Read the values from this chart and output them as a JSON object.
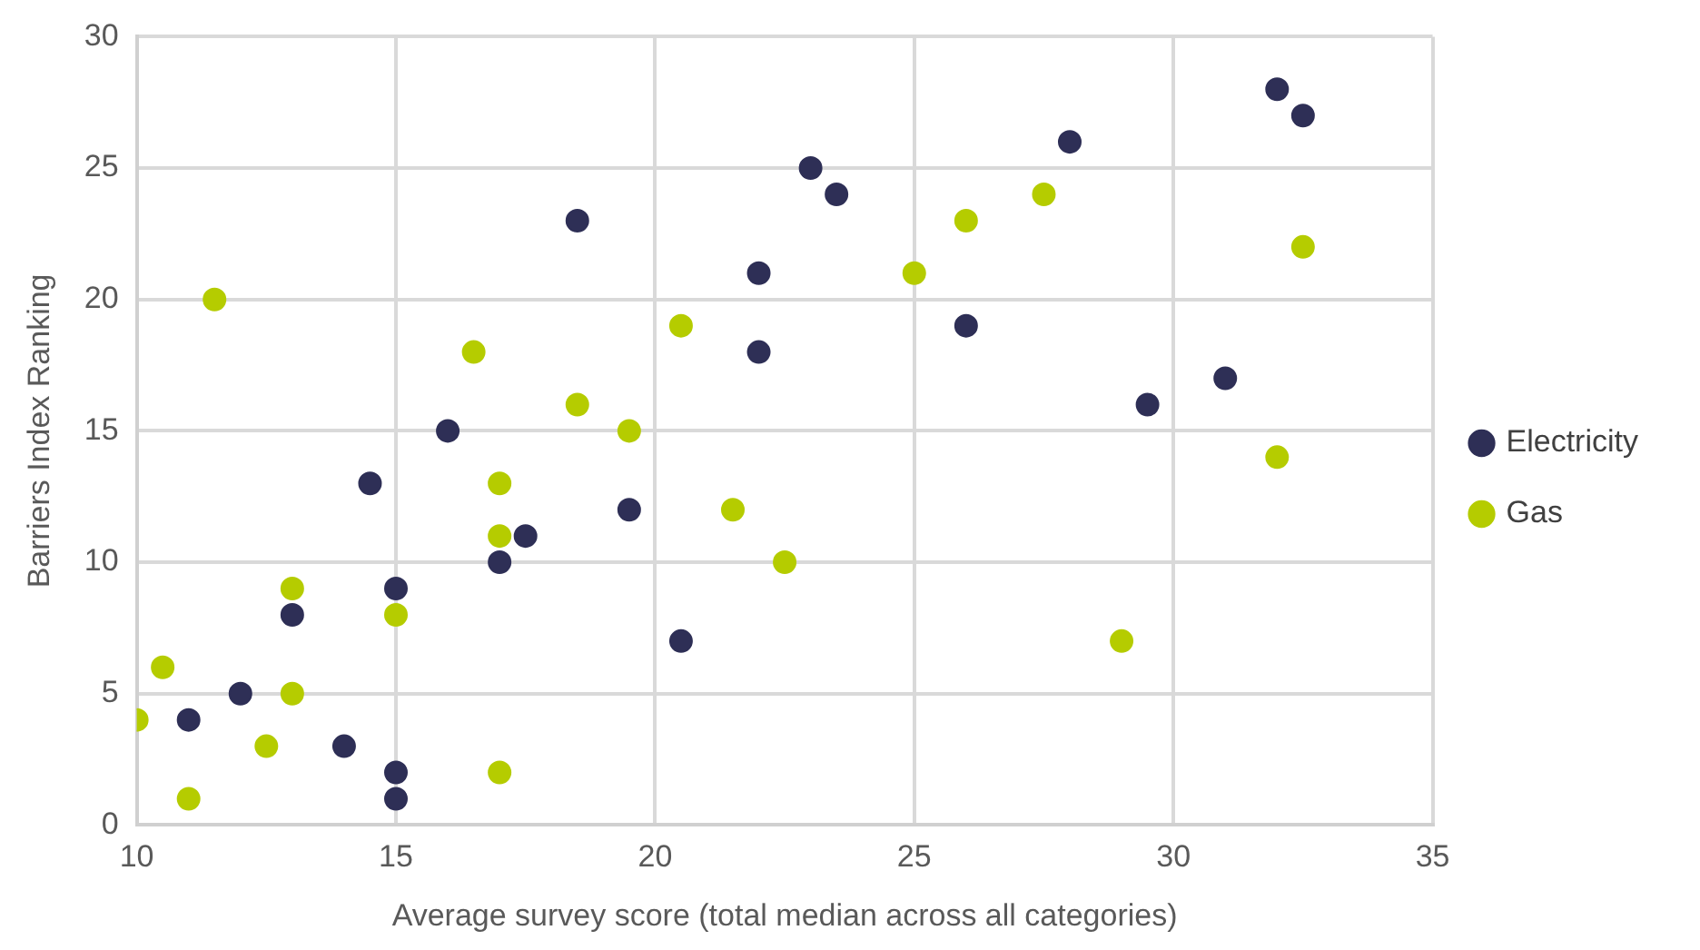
{
  "chart_data": {
    "type": "scatter",
    "xlabel": "Average survey score (total median across all categories)",
    "ylabel": "Barriers Index Ranking",
    "xlim": [
      10,
      35
    ],
    "xticks": [
      10,
      15,
      20,
      25,
      30,
      35
    ],
    "ylim": [
      0,
      30
    ],
    "yticks": [
      0,
      5,
      10,
      15,
      20,
      25,
      30
    ],
    "grid": true,
    "legend": "right",
    "marker": "circle",
    "series": [
      {
        "name": "Electricity",
        "color": "#2e2f56",
        "x": [
          11,
          12,
          13,
          14,
          14.5,
          15,
          15,
          15,
          16,
          17,
          17.5,
          18.5,
          19.5,
          20.5,
          22,
          22,
          23,
          23.5,
          26,
          28,
          29.5,
          31,
          32,
          32.5
        ],
        "values": [
          4,
          5,
          8,
          3,
          13,
          9,
          2,
          1,
          15,
          10,
          11,
          23,
          12,
          7,
          21,
          18,
          25,
          24,
          19,
          26,
          16,
          17,
          28,
          27
        ]
      },
      {
        "name": "Gas",
        "color": "#b5cc00",
        "x": [
          10,
          10.5,
          11,
          11.5,
          12.5,
          13,
          13,
          15,
          16.5,
          17,
          17,
          17,
          18.5,
          19.5,
          20.5,
          21.5,
          22.5,
          25,
          26,
          27.5,
          29,
          32,
          32.5
        ],
        "values": [
          4,
          6,
          1,
          20,
          3,
          9,
          5,
          8,
          18,
          13,
          11,
          2,
          16,
          15,
          19,
          12,
          10,
          21,
          23,
          24,
          7,
          14,
          22
        ]
      }
    ]
  }
}
